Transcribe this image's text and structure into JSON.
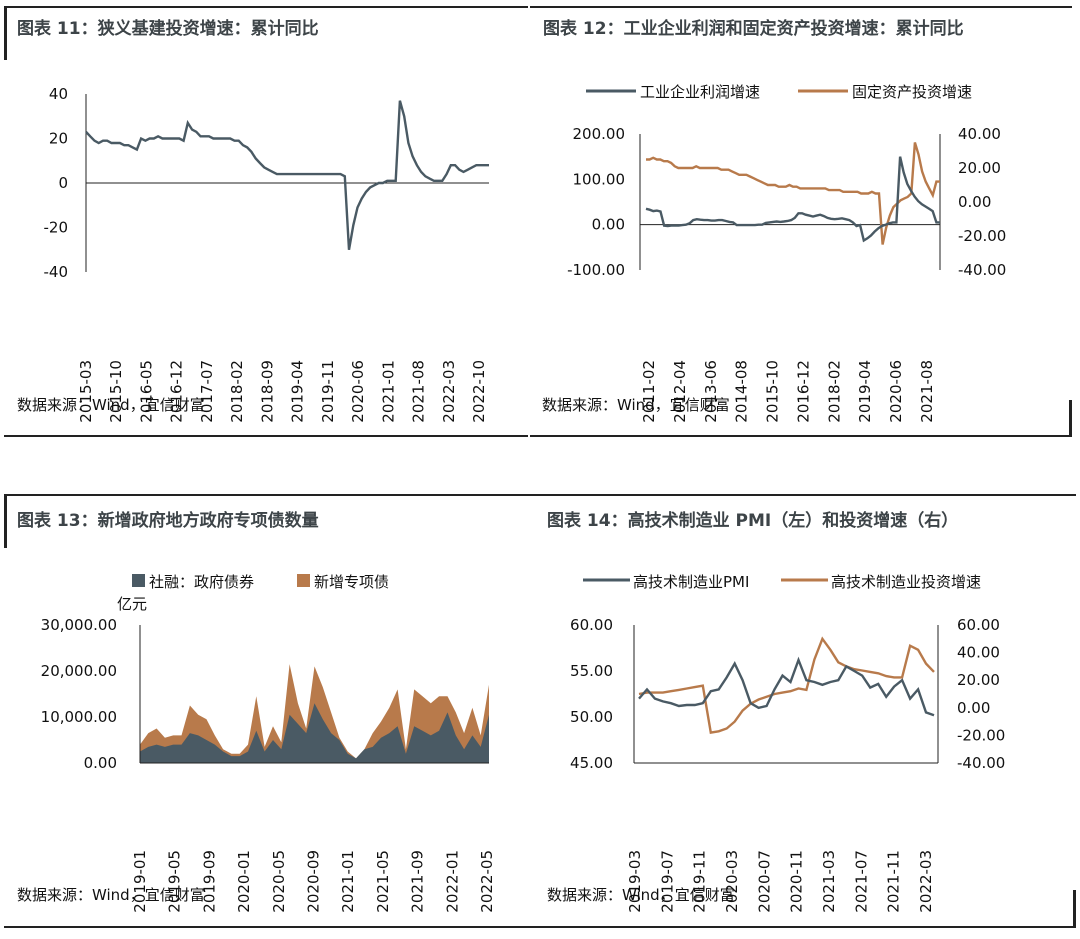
{
  "panels": {
    "p11": {
      "title": "图表 11：狭义基建投资增速：累计同比",
      "source": "数据来源：Wind，宜信财富"
    },
    "p12": {
      "title": "图表 12：工业企业利润和固定资产投资增速：累计同比",
      "source": "数据来源：Wind，宜信财富"
    },
    "p13": {
      "title": "图表 13：新增政府地方政府专项债数量",
      "source": "数据来源：Wind，宜信财富"
    },
    "p14": {
      "title": "图表 14：高技术制造业 PMI（左）和投资增速（右）",
      "source": "数据来源：Wind，宜信财富"
    }
  },
  "colors": {
    "slate": "#4a5a64",
    "copper": "#b87a4b",
    "axis": "#222222"
  },
  "chart_data": [
    {
      "id": "chart11",
      "type": "line",
      "x_tick_labels": [
        "2015-03",
        "2015-10",
        "2016-05",
        "2016-12",
        "2017-07",
        "2018-02",
        "2018-09",
        "2019-04",
        "2019-11",
        "2020-06",
        "2021-01",
        "2021-08",
        "2022-03",
        "2022-10"
      ],
      "ylim": [
        -40,
        40
      ],
      "yticks": [
        -40,
        -20,
        0,
        20,
        40
      ],
      "ytick_labels": [
        "-40",
        "-20",
        "0",
        "20",
        "40"
      ],
      "series": [
        {
          "values": [
            23,
            21,
            19,
            18,
            19,
            19,
            18,
            18,
            18,
            17,
            17,
            16,
            15,
            20,
            19,
            20,
            20,
            21,
            20,
            20,
            20,
            20,
            20,
            19,
            27,
            24,
            23,
            21,
            21,
            21,
            20,
            20,
            20,
            20,
            20,
            19,
            19,
            17,
            16,
            14,
            11,
            9,
            7,
            6,
            5,
            4,
            4,
            4,
            4,
            4,
            4,
            4,
            4,
            4,
            4,
            4,
            4,
            4,
            4,
            4,
            4,
            3,
            -30,
            -19,
            -11,
            -7,
            -4,
            -2,
            -1,
            0,
            0,
            1,
            1,
            1,
            37,
            30,
            18,
            12,
            8,
            5,
            3,
            2,
            1,
            1,
            1,
            4,
            8,
            8,
            6,
            5,
            6,
            7,
            8,
            8,
            8,
            8
          ]
        }
      ]
    },
    {
      "id": "chart12",
      "type": "line",
      "x_tick_labels": [
        "2011-02",
        "2012-04",
        "2013-06",
        "2014-08",
        "2015-10",
        "2016-12",
        "2018-02",
        "2019-04",
        "2020-06",
        "2021-08"
      ],
      "ylim_left": [
        -100,
        200
      ],
      "ylim_right": [
        -40,
        40
      ],
      "yticks_left_labels": [
        "-100.00",
        "0.00",
        "100.00",
        "200.00"
      ],
      "yticks_right_labels": [
        "-40.00",
        "-20.00",
        "0.00",
        "20.00",
        "40.00"
      ],
      "series": [
        {
          "name": "工业企业利润增速",
          "axis": "left",
          "values": [
            35,
            33,
            30,
            31,
            29,
            -2,
            -3,
            -2,
            -2,
            -2,
            -1,
            0,
            3,
            10,
            12,
            11,
            10,
            10,
            9,
            9,
            10,
            10,
            8,
            6,
            5,
            -1,
            -1,
            -1,
            -1,
            -1,
            -1,
            0,
            0,
            4,
            5,
            6,
            7,
            6,
            7,
            8,
            10,
            15,
            25,
            25,
            22,
            20,
            18,
            20,
            22,
            19,
            15,
            13,
            12,
            13,
            14,
            12,
            10,
            5,
            -3,
            -1,
            -35,
            -30,
            -24,
            -15,
            -8,
            -3,
            0,
            3,
            5,
            5,
            150,
            115,
            90,
            75,
            62,
            52,
            45,
            40,
            35,
            30,
            5,
            5
          ]
        },
        {
          "name": "固定资产投资增速",
          "axis": "right",
          "values": [
            25,
            25,
            26,
            25,
            25,
            24,
            24,
            23,
            21,
            20,
            20,
            20,
            20,
            20,
            21,
            20,
            20,
            20,
            20,
            20,
            20,
            19,
            19,
            19,
            18,
            17,
            16,
            16,
            16,
            15,
            14,
            13,
            12,
            11,
            10,
            10,
            10,
            9,
            9,
            9,
            10,
            9,
            9,
            8,
            8,
            8,
            8,
            8,
            8,
            8,
            8,
            7,
            7,
            7,
            7,
            6,
            6,
            6,
            6,
            6,
            5,
            5,
            5,
            6,
            5,
            5,
            -25,
            -15,
            -8,
            -3,
            -1,
            1,
            2,
            3,
            5,
            35,
            28,
            18,
            12,
            8,
            4,
            12,
            12
          ]
        }
      ]
    },
    {
      "id": "chart13",
      "type": "area",
      "unit_label": "亿元",
      "x_tick_labels": [
        "2019-01",
        "2019-05",
        "2019-09",
        "2020-01",
        "2020-05",
        "2020-09",
        "2021-01",
        "2021-05",
        "2021-09",
        "2022-01",
        "2022-05"
      ],
      "ylim": [
        0,
        30000
      ],
      "ytick_labels": [
        "0.00",
        "10,000.00",
        "20,000.00",
        "30,000.00"
      ],
      "series": [
        {
          "name": "社融：政府债券",
          "values": [
            2500,
            3500,
            4000,
            3500,
            4000,
            4000,
            6500,
            6000,
            5000,
            4000,
            2500,
            1500,
            1500,
            2500,
            7000,
            2500,
            5000,
            3000,
            10500,
            8500,
            6500,
            13000,
            9500,
            6500,
            5000,
            2000,
            1000,
            3000,
            3500,
            5500,
            6500,
            8000,
            2000,
            8000,
            7000,
            6000,
            7000,
            11000,
            6000,
            3000,
            6000,
            3500,
            10500
          ]
        },
        {
          "name": "新增专项债",
          "values": [
            4000,
            6500,
            7500,
            5500,
            6000,
            6000,
            12500,
            10500,
            9500,
            6000,
            3000,
            2000,
            2000,
            4000,
            14500,
            3500,
            8000,
            4500,
            21500,
            13000,
            7500,
            21000,
            16500,
            11000,
            5500,
            2500,
            1000,
            3000,
            6500,
            9000,
            12000,
            16000,
            3000,
            16000,
            14500,
            13000,
            14500,
            14500,
            11000,
            6500,
            12000,
            6000,
            17000
          ]
        }
      ]
    },
    {
      "id": "chart14",
      "type": "line",
      "x_tick_labels": [
        "2019-03",
        "2019-07",
        "2019-11",
        "2020-03",
        "2020-07",
        "2020-11",
        "2021-03",
        "2021-07",
        "2021-11",
        "2022-03"
      ],
      "ylim_left": [
        45,
        60
      ],
      "ylim_right": [
        -40,
        60
      ],
      "yticks_left_labels": [
        "45.00",
        "50.00",
        "55.00",
        "60.00"
      ],
      "yticks_right_labels": [
        "-40.00",
        "-20.00",
        "0.00",
        "20.00",
        "40.00",
        "60.00"
      ],
      "series": [
        {
          "name": "高技术制造业PMI",
          "axis": "left",
          "values": [
            52,
            53,
            52,
            51.7,
            51.5,
            51.2,
            51.3,
            51.3,
            51.5,
            52.8,
            53,
            54.3,
            55.8,
            54,
            51.5,
            51,
            51.2,
            53,
            54.5,
            53.8,
            56.2,
            54,
            53.8,
            53.5,
            53.8,
            54,
            55.5,
            55,
            54.5,
            53.2,
            53.6,
            52.2,
            53.3,
            54,
            52,
            53,
            50.5,
            50.2
          ]
        },
        {
          "name": "高技术制造业投资增速",
          "axis": "right",
          "values": [
            10,
            11,
            11,
            11,
            12,
            13,
            14,
            15,
            16,
            -18,
            -17,
            -15,
            -10,
            -2,
            3,
            6,
            8,
            10,
            11,
            12,
            14,
            13,
            35,
            50,
            42,
            33,
            30,
            28,
            27,
            26,
            25,
            23,
            22,
            22,
            45,
            42,
            32,
            26
          ]
        }
      ]
    }
  ]
}
